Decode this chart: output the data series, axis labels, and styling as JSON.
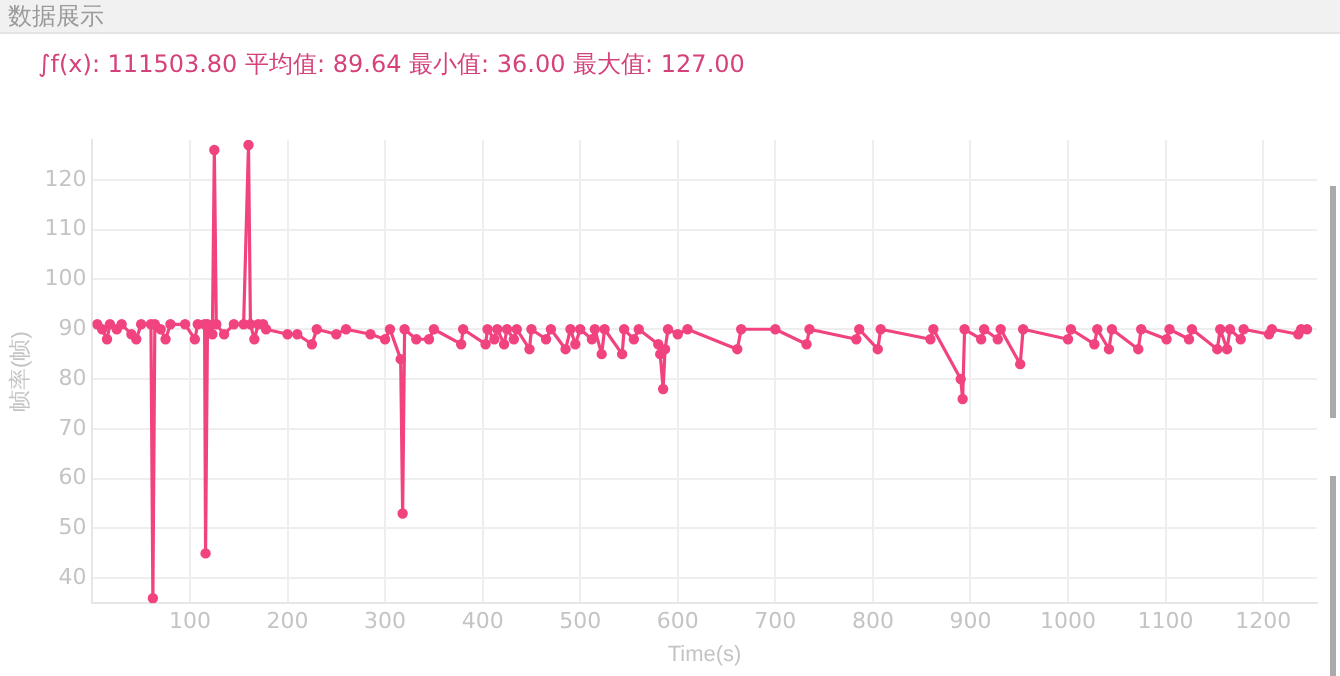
{
  "chart_data": {
    "type": "line",
    "title": "数据展示",
    "subtitle": "∫f(x): 111503.80 平均值: 89.64 最小值: 36.00 最大值: 127.00",
    "xlabel": "Time(s)",
    "ylabel": "帧率(帧)",
    "x": [
      5,
      10,
      15,
      18,
      25,
      30,
      40,
      45,
      50,
      60,
      62,
      64,
      70,
      75,
      80,
      95,
      105,
      108,
      115,
      116,
      118,
      123,
      125,
      127,
      135,
      145,
      155,
      160,
      162,
      166,
      170,
      175,
      178,
      200,
      210,
      225,
      230,
      250,
      260,
      285,
      300,
      305,
      316,
      318,
      320,
      332,
      345,
      350,
      378,
      380,
      403,
      405,
      412,
      415,
      422,
      425,
      432,
      435,
      448,
      450,
      465,
      470,
      485,
      490,
      495,
      500,
      512,
      515,
      522,
      525,
      543,
      545,
      555,
      560,
      580,
      582,
      585,
      587,
      590,
      600,
      610,
      661,
      665,
      700,
      732,
      735,
      783,
      786,
      805,
      808,
      859,
      862,
      890,
      892,
      894,
      911,
      914,
      928,
      931,
      951,
      954,
      1000,
      1003,
      1027,
      1030,
      1042,
      1045,
      1072,
      1075,
      1101,
      1104,
      1124,
      1127,
      1153,
      1156,
      1163,
      1166,
      1177,
      1180,
      1206,
      1209,
      1236,
      1239,
      1245
    ],
    "values": [
      91,
      90,
      88,
      91,
      90,
      91,
      89,
      88,
      91,
      91,
      36,
      91,
      90,
      88,
      91,
      91,
      88,
      91,
      91,
      45,
      91,
      89,
      126,
      91,
      89,
      91,
      91,
      127,
      91,
      88,
      91,
      91,
      90,
      89,
      89,
      87,
      90,
      89,
      90,
      89,
      88,
      90,
      84,
      53,
      90,
      88,
      88,
      90,
      87,
      90,
      87,
      90,
      88,
      90,
      87,
      90,
      88,
      90,
      86,
      90,
      88,
      90,
      86,
      90,
      87,
      90,
      88,
      90,
      85,
      90,
      85,
      90,
      88,
      90,
      87,
      85,
      78,
      86,
      90,
      89,
      90,
      86,
      90,
      90,
      87,
      90,
      88,
      90,
      86,
      90,
      88,
      90,
      80,
      76,
      90,
      88,
      90,
      88,
      90,
      83,
      90,
      88,
      90,
      87,
      90,
      86,
      90,
      86,
      90,
      88,
      90,
      88,
      90,
      86,
      90,
      86,
      90,
      88,
      90,
      89,
      90,
      89,
      90,
      90
    ],
    "color": "#f0437f",
    "xlim": [
      0,
      1255
    ],
    "ylim": [
      35,
      128
    ],
    "xticks": [
      100,
      200,
      300,
      400,
      500,
      600,
      700,
      800,
      900,
      1000,
      1100,
      1200
    ],
    "yticks": [
      40,
      50,
      60,
      70,
      80,
      90,
      100,
      110,
      120
    ],
    "grid": true,
    "marker": "circle",
    "line_style": "solid"
  }
}
